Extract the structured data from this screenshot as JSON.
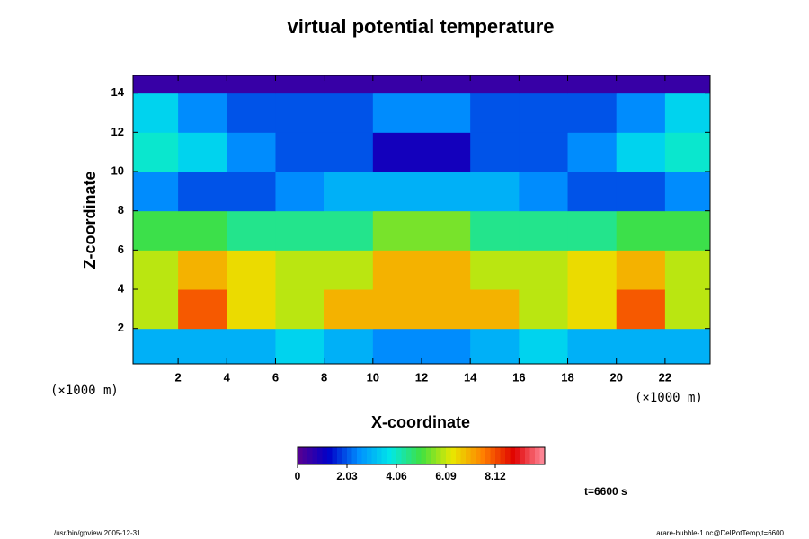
{
  "chart_data": {
    "type": "heatmap",
    "title": "virtual potential temperature",
    "x_label": "X-coordinate",
    "y_label": "Z-coordinate",
    "x_unit": "(×1000 m)",
    "y_unit": "(×1000 m)",
    "x": [
      1,
      3,
      5,
      7,
      9,
      11,
      13,
      15,
      17,
      19,
      21,
      23
    ],
    "z": [
      1,
      3,
      5,
      7,
      9,
      11,
      13,
      15
    ],
    "values": [
      [
        3,
        3,
        3,
        3.5,
        3,
        2.5,
        2.5,
        3,
        3.5,
        3,
        3,
        3
      ],
      [
        6,
        8,
        6.5,
        6,
        7,
        7,
        7,
        7,
        6,
        6.5,
        8,
        6
      ],
      [
        6,
        7,
        6.5,
        6,
        6,
        7,
        7,
        6,
        6,
        6.5,
        7,
        6
      ],
      [
        5,
        5,
        4.5,
        4.5,
        4.5,
        5.5,
        5.5,
        4.5,
        4.5,
        4.5,
        5,
        5
      ],
      [
        2.5,
        2,
        2,
        2.5,
        3,
        3,
        3,
        3,
        2.5,
        2,
        2,
        2.5
      ],
      [
        4,
        3.5,
        2.5,
        2,
        2,
        1,
        1,
        2,
        2,
        2.5,
        3.5,
        4
      ],
      [
        3.5,
        2.5,
        2,
        2,
        2,
        2.5,
        2.5,
        2,
        2,
        2,
        2.5,
        3.5
      ],
      [
        0.5,
        0.5,
        0.5,
        0.5,
        0.5,
        0.5,
        0.5,
        0.5,
        0.5,
        0.5,
        0.5,
        0.5
      ]
    ],
    "xlim": [
      0.15,
      23.85
    ],
    "xticks": [
      2,
      4,
      6,
      8,
      10,
      12,
      14,
      16,
      18,
      20,
      22
    ],
    "ylim": [
      0.2,
      14.9
    ],
    "yticks": [
      2,
      4,
      6,
      8,
      10,
      12,
      14
    ],
    "clim": [
      0,
      10.15
    ],
    "cticks": [
      0,
      2.03,
      4.06,
      6.09,
      8.12
    ],
    "colormap": [
      "#5a0090",
      "#0000c8",
      "#0090ff",
      "#00e8e8",
      "#40e040",
      "#e8e800",
      "#ff8000",
      "#e00000",
      "#ff90a0"
    ],
    "time_label": "t=6600 s",
    "footer_left": "/usr/bin/gpview 2005-12-31",
    "footer_right": "arare-bubble-1.nc@DelPotTemp,t=6600"
  }
}
